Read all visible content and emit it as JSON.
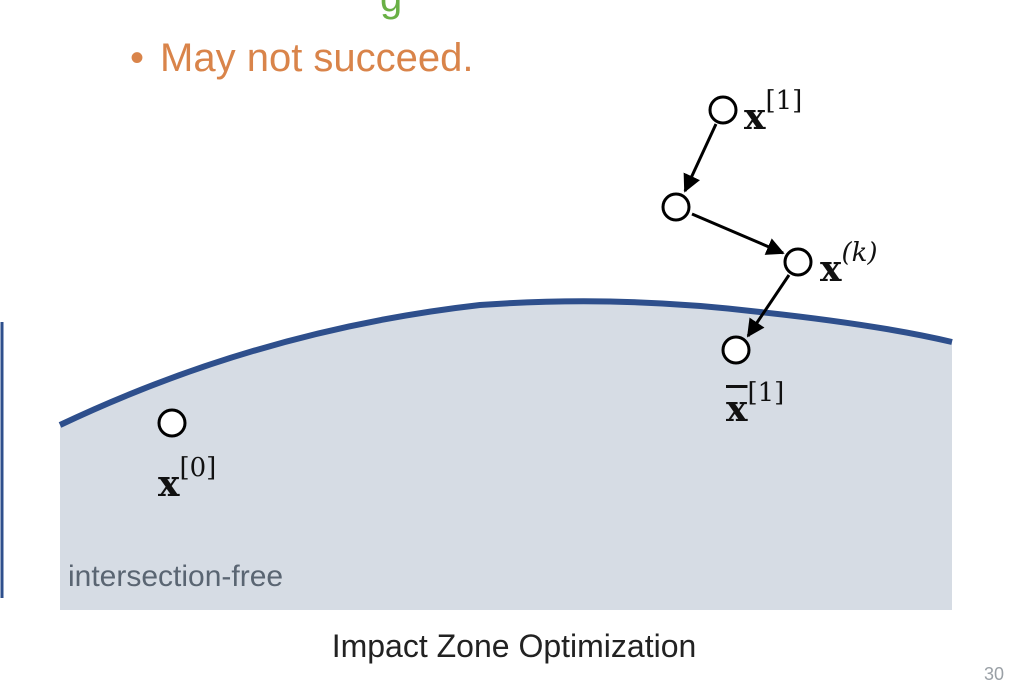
{
  "slide": {
    "partial_top_text": "g",
    "bullet": "May not succeed.",
    "region_label": "intersection-free",
    "caption": "Impact Zone Optimization",
    "page_number": "30"
  },
  "labels": {
    "x1": {
      "base": "x",
      "sup": "[1]"
    },
    "xk": {
      "base": "x",
      "sup": "(k)"
    },
    "xbar1": {
      "base": "x",
      "sup": "[1]"
    },
    "x0": {
      "base": "x",
      "sup": "[0]"
    }
  },
  "colors": {
    "bullet_text": "#d9844a",
    "partial_text": "#69b045",
    "region_fill": "#d6dce4",
    "boundary": "#2e4f8c",
    "arrow": "#000000"
  }
}
